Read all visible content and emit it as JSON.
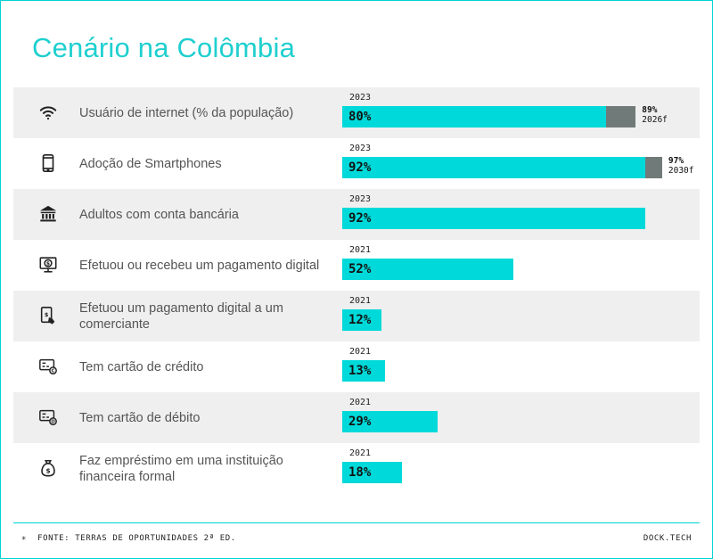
{
  "title": "Cenário na Colômbia",
  "chart_data": {
    "type": "bar",
    "orientation": "horizontal",
    "xlim": [
      0,
      100
    ],
    "colors": {
      "actual": "#00d9d9",
      "forecast": "#707a79"
    },
    "rows": [
      {
        "label": "Usuário de internet (% da população)",
        "icon": "wifi-icon",
        "year": "2023",
        "value": 80,
        "value_label": "80%",
        "forecast_value": 89,
        "forecast_label": "89%",
        "forecast_year": "2026f"
      },
      {
        "label": "Adoção de Smartphones",
        "icon": "smartphone-icon",
        "year": "2023",
        "value": 92,
        "value_label": "92%",
        "forecast_value": 97,
        "forecast_label": "97%",
        "forecast_year": "2030f"
      },
      {
        "label": "Adultos com conta bancária",
        "icon": "bank-icon",
        "year": "2023",
        "value": 92,
        "value_label": "92%"
      },
      {
        "label": "Efetuou ou recebeu um pagamento digital",
        "icon": "digital-payment-monitor-icon",
        "year": "2021",
        "value": 52,
        "value_label": "52%"
      },
      {
        "label": "Efetuou um pagamento digital a um comerciante",
        "icon": "phone-payment-icon",
        "year": "2021",
        "value": 12,
        "value_label": "12%"
      },
      {
        "label": "Tem cartão de crédito",
        "icon": "credit-card-icon",
        "year": "2021",
        "value": 13,
        "value_label": "13%"
      },
      {
        "label": "Tem cartão de débito",
        "icon": "debit-card-icon",
        "year": "2021",
        "value": 29,
        "value_label": "29%"
      },
      {
        "label": "Faz empréstimo em uma instituição financeira formal",
        "icon": "money-bag-icon",
        "year": "2021",
        "value": 18,
        "value_label": "18%"
      }
    ]
  },
  "footer": {
    "source": "FONTE: TERRAS DE OPORTUNIDADES 2ª ED.",
    "brand": "DOCK.TECH"
  }
}
